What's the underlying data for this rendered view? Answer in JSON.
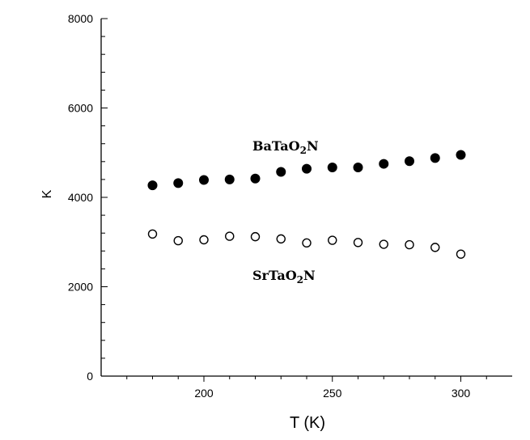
{
  "chart_data": {
    "type": "scatter",
    "title": "",
    "xlabel": "T (K)",
    "ylabel": "K",
    "xlim": [
      160,
      320
    ],
    "ylim": [
      0,
      8000
    ],
    "x_ticks": [
      200,
      250,
      300
    ],
    "y_ticks": [
      0,
      2000,
      4000,
      6000,
      8000
    ],
    "grid": false,
    "legend": "none",
    "series": [
      {
        "name": "BaTaO2N",
        "marker": "filled-circle",
        "color": "#000000",
        "x": [
          180,
          190,
          200,
          210,
          220,
          230,
          240,
          250,
          260,
          270,
          280,
          290,
          300
        ],
        "y": [
          4270,
          4320,
          4390,
          4400,
          4420,
          4570,
          4640,
          4670,
          4670,
          4750,
          4810,
          4880,
          4950
        ]
      },
      {
        "name": "SrTaO2N",
        "marker": "open-circle",
        "color": "#000000",
        "x": [
          180,
          190,
          200,
          210,
          220,
          230,
          240,
          250,
          260,
          270,
          280,
          290,
          300
        ],
        "y": [
          3180,
          3030,
          3050,
          3130,
          3120,
          3070,
          2980,
          3040,
          2990,
          2950,
          2940,
          2880,
          2730
        ]
      }
    ],
    "annotations": [
      {
        "series": "BaTaO2N",
        "base": "BaTaO",
        "sub": "2",
        "tail": "N"
      },
      {
        "series": "SrTaO2N",
        "base": "SrTaO",
        "sub": "2",
        "tail": "N"
      }
    ]
  }
}
